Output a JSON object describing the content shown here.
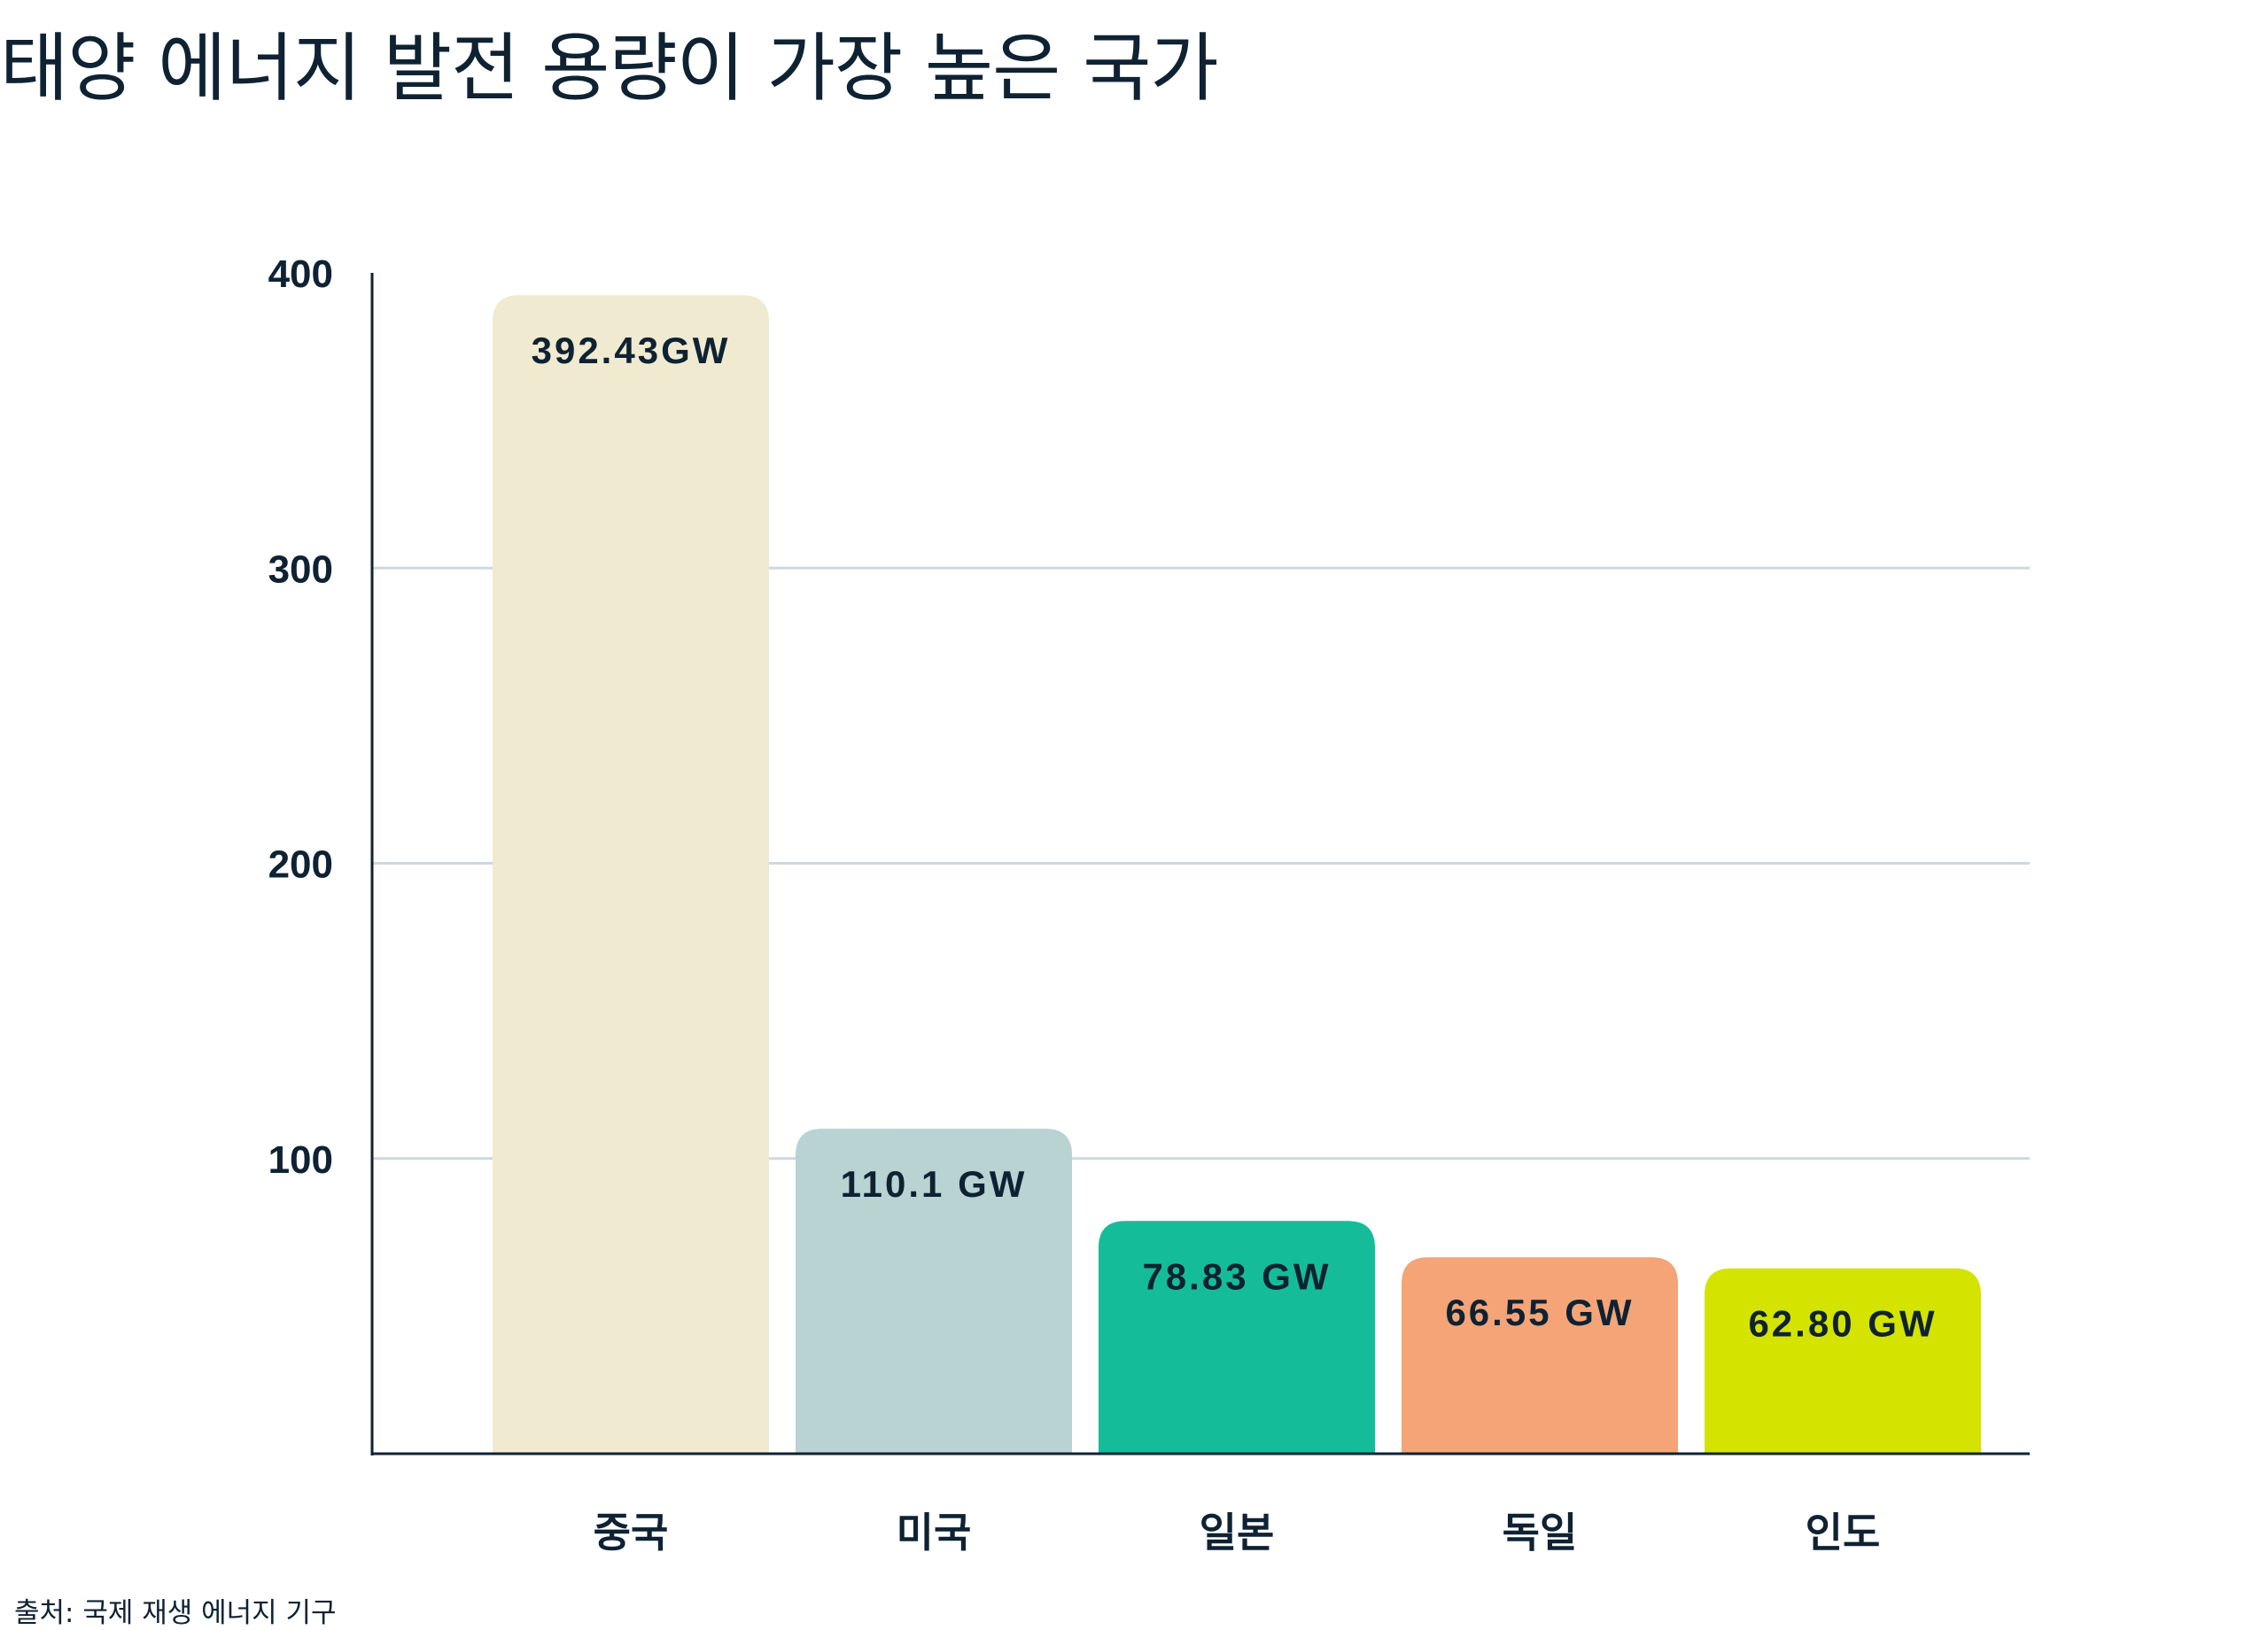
{
  "chart_data": {
    "type": "bar",
    "title": "태양 에너지 발전 용량이 가장 높은 국가",
    "categories": [
      "중국",
      "미국",
      "일본",
      "독일",
      "인도"
    ],
    "values": [
      392.43,
      110.1,
      78.83,
      66.55,
      62.8
    ],
    "data_labels": [
      "392.43GW",
      "110.1 GW",
      "78.83 GW",
      "66.55 GW",
      "62.80 GW"
    ],
    "colors": [
      "#efead0",
      "#b8d3d1",
      "#15bc9a",
      "#f4a477",
      "#d4e300"
    ],
    "ylim": [
      0,
      400
    ],
    "yticks": [
      100,
      200,
      300,
      400
    ],
    "ytick_labels": [
      "100",
      "200",
      "300",
      "400"
    ],
    "xlabel": "",
    "ylabel": "",
    "grid": true,
    "source": "출처: 국제 재생 에너지 기구"
  }
}
